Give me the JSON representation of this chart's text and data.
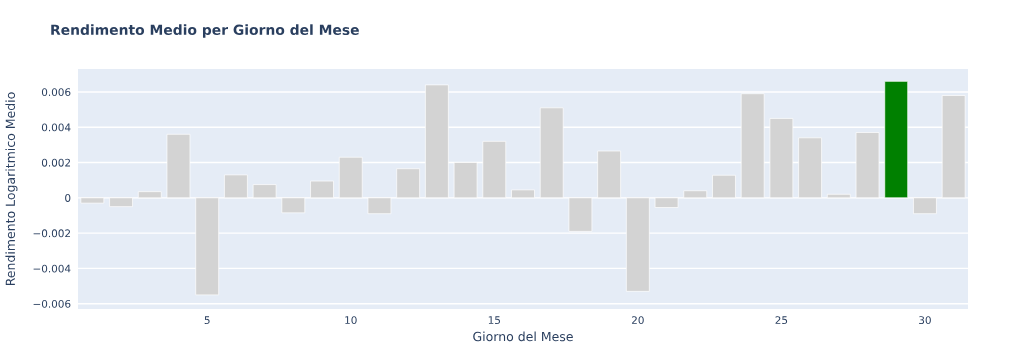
{
  "chart_data": {
    "type": "bar",
    "title": "Rendimento Medio per Giorno del Mese",
    "xlabel": "Giorno del Mese",
    "ylabel": "Rendimento Logaritmico Medio",
    "x": [
      1,
      2,
      3,
      4,
      5,
      6,
      7,
      8,
      9,
      10,
      11,
      12,
      13,
      14,
      15,
      16,
      17,
      18,
      19,
      20,
      21,
      22,
      23,
      24,
      25,
      26,
      27,
      28,
      29,
      30,
      31
    ],
    "values": [
      -0.0003,
      -0.0005,
      0.00035,
      0.0036,
      -0.0055,
      0.0013,
      0.00075,
      -0.00085,
      0.00095,
      0.0023,
      -0.0009,
      0.00165,
      0.0064,
      0.002,
      0.0032,
      0.00045,
      0.0051,
      -0.0019,
      0.00265,
      -0.0053,
      -0.00055,
      0.0004,
      0.00128,
      0.0059,
      0.0045,
      0.0034,
      0.0002,
      0.0037,
      0.0066,
      -0.0009,
      0.0058
    ],
    "colors": [
      "#d3d3d3",
      "#d3d3d3",
      "#d3d3d3",
      "#d3d3d3",
      "#d3d3d3",
      "#d3d3d3",
      "#d3d3d3",
      "#d3d3d3",
      "#d3d3d3",
      "#d3d3d3",
      "#d3d3d3",
      "#d3d3d3",
      "#d3d3d3",
      "#d3d3d3",
      "#d3d3d3",
      "#d3d3d3",
      "#d3d3d3",
      "#d3d3d3",
      "#d3d3d3",
      "#d3d3d3",
      "#d3d3d3",
      "#d3d3d3",
      "#d3d3d3",
      "#d3d3d3",
      "#d3d3d3",
      "#d3d3d3",
      "#d3d3d3",
      "#d3d3d3",
      "#008000",
      "#d3d3d3",
      "#d3d3d3"
    ],
    "xlim": [
      0.5,
      31.5
    ],
    "xticks": [
      5,
      10,
      15,
      20,
      25,
      30
    ],
    "ylim": [
      -0.0063,
      0.0073
    ],
    "yticks": [
      {
        "value": -0.006,
        "label": "−0.006"
      },
      {
        "value": -0.004,
        "label": "−0.004"
      },
      {
        "value": -0.002,
        "label": "−0.002"
      },
      0,
      0.002,
      0.004,
      0.006
    ],
    "grid": "y"
  }
}
